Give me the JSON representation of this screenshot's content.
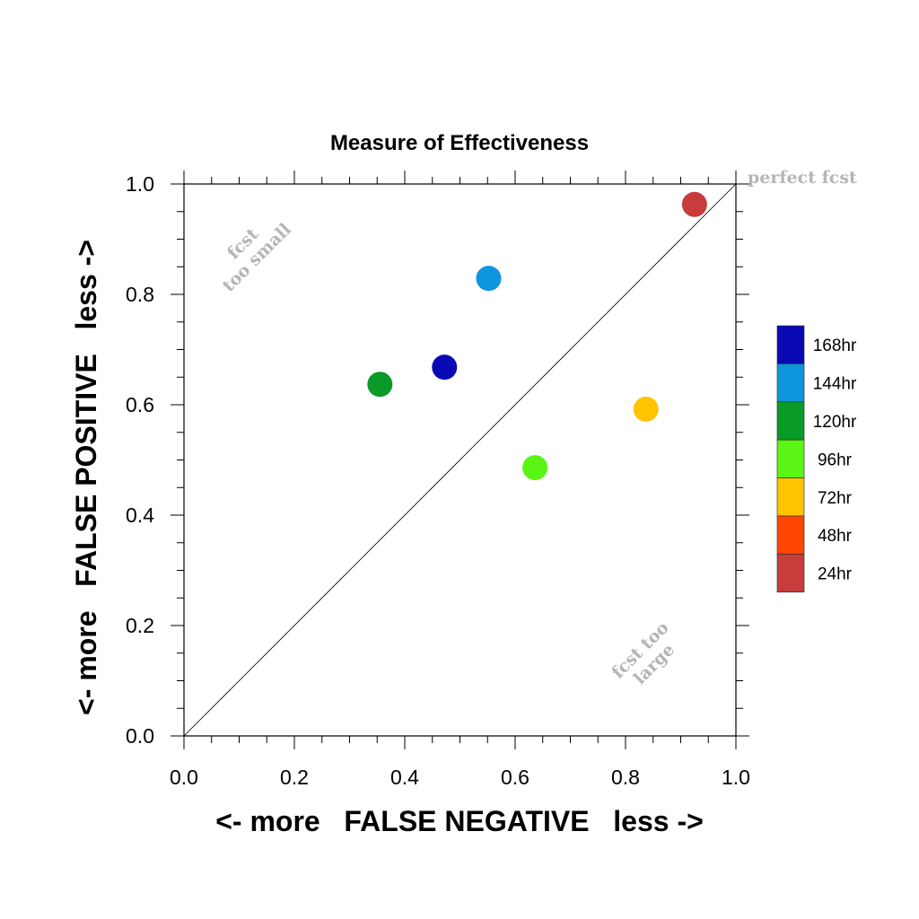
{
  "chart_data": {
    "type": "scatter",
    "title": "Measure of Effectiveness",
    "xlabel": "<- more   FALSE NEGATIVE   less ->",
    "ylabel": "<- more   FALSE POSITIVE   less ->",
    "xlim": [
      0.0,
      1.0
    ],
    "ylim": [
      0.0,
      1.0
    ],
    "xticks": [
      "0.0",
      "0.2",
      "0.4",
      "0.6",
      "0.8",
      "1.0"
    ],
    "yticks": [
      "0.0",
      "0.2",
      "0.4",
      "0.6",
      "0.8",
      "1.0"
    ],
    "diagonal_reference_line": true,
    "grid": false,
    "legend_placement": "right",
    "annotations": {
      "perfect": "perfect fcst",
      "too_small_line1": "fcst",
      "too_small_line2": "too small",
      "too_large_line1": "fcst too",
      "too_large_line2": "large"
    },
    "legend": [
      {
        "label": "168hr",
        "color": "#0a0ab4"
      },
      {
        "label": "144hr",
        "color": "#0d96dc"
      },
      {
        "label": "120hr",
        "color": "#0a9a28"
      },
      {
        "label": "96hr",
        "color": "#5af514"
      },
      {
        "label": "72hr",
        "color": "#ffc300"
      },
      {
        "label": "48hr",
        "color": "#ff4600"
      },
      {
        "label": "24hr",
        "color": "#c83c3c"
      }
    ],
    "points": [
      {
        "name": "24hr",
        "x": 0.925,
        "y": 0.963,
        "color": "#c83c3c"
      },
      {
        "name": "144hr",
        "x": 0.552,
        "y": 0.829,
        "color": "#0d96dc"
      },
      {
        "name": "168hr",
        "x": 0.472,
        "y": 0.668,
        "color": "#0a0ab4"
      },
      {
        "name": "120hr",
        "x": 0.355,
        "y": 0.637,
        "color": "#0a9a28"
      },
      {
        "name": "72hr",
        "x": 0.837,
        "y": 0.592,
        "color": "#ffc300"
      },
      {
        "name": "96hr",
        "x": 0.636,
        "y": 0.486,
        "color": "#5af514"
      }
    ]
  }
}
